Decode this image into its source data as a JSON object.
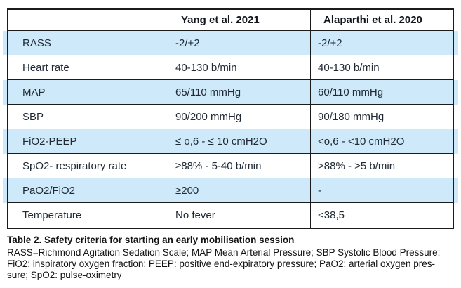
{
  "table": {
    "headers": [
      "",
      "Yang et al. 2021",
      "Alaparthi et al. 2020"
    ],
    "rows": [
      {
        "label": "RASS",
        "yang": "-2/+2",
        "alaparthi": "-2/+2"
      },
      {
        "label": "Heart rate",
        "yang": "40-130 b/min",
        "alaparthi": "40-130 b/min"
      },
      {
        "label": "MAP",
        "yang": "65/110 mmHg",
        "alaparthi": "60/110 mmHg"
      },
      {
        "label": "SBP",
        "yang": "90/200 mmHg",
        "alaparthi": "90/180 mmHg"
      },
      {
        "label": "FiO2-PEEP",
        "yang": "≤ o,6 - ≤ 10 cmH2O",
        "alaparthi": "<o,6 - <10 cmH2O"
      },
      {
        "label": "SpO2- respiratory rate",
        "yang": "≥88% - 5-40 b/min",
        "alaparthi": ">88% - >5 b/min"
      },
      {
        "label": "PaO2/FiO2",
        "yang": "≥200",
        "alaparthi": "-"
      },
      {
        "label": "Temperature",
        "yang": "No fever",
        "alaparthi": "<38,5"
      }
    ]
  },
  "caption": {
    "title": "Table 2. Safety criteria for starting an early mobilisation session"
  },
  "footnote": {
    "lines": [
      "RASS=Richmond Agitation Sedation Scale; MAP Mean Arterial Pressure; SBP Systolic Blood Pressure;",
      "FiO2: inspiratory oxygen fraction; PEEP: positive end-expiratory pressure; PaO2: arterial oxygen pres-",
      "sure; SpO2: pulse-oximetry"
    ]
  },
  "colors": {
    "row_highlight": "#cee9f9",
    "border": "#1b1b1b",
    "text": "#202a35",
    "background": "#ffffff"
  }
}
